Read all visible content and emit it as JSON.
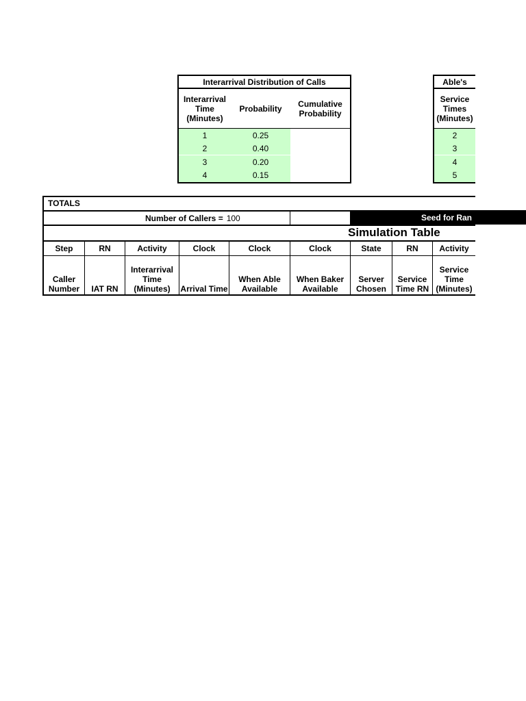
{
  "interarrival_table": {
    "title": "Interarrival Distribution of Calls",
    "headers": [
      "Interarrival Time (Minutes)",
      "Probability",
      "Cumulative Probability"
    ],
    "rows": [
      {
        "time": "1",
        "prob": "0.25",
        "cum": ""
      },
      {
        "time": "2",
        "prob": "0.40",
        "cum": ""
      },
      {
        "time": "3",
        "prob": "0.20",
        "cum": ""
      },
      {
        "time": "4",
        "prob": "0.15",
        "cum": ""
      }
    ],
    "fill_color": "#ccffcc"
  },
  "able_table": {
    "title": "Able's",
    "header": "Service Times (Minutes)",
    "rows": [
      "2",
      "3",
      "4",
      "5"
    ]
  },
  "totals": {
    "label": "TOTALS",
    "callers_label": "Number of Callers =",
    "callers_value": "100",
    "seed_label": "Seed for Ran"
  },
  "simulation": {
    "title": "Simulation Table",
    "types": [
      "Step",
      "RN",
      "Activity",
      "Clock",
      "Clock",
      "Clock",
      "State",
      "RN",
      "Activity"
    ],
    "headers": [
      "Caller Number",
      "IAT RN",
      "Interarrival Time (Minutes)",
      "Arrival Time",
      "When Able Available",
      "When Baker Available",
      "Server Chosen",
      "Service Time RN",
      "Service Time (Minutes)"
    ]
  }
}
